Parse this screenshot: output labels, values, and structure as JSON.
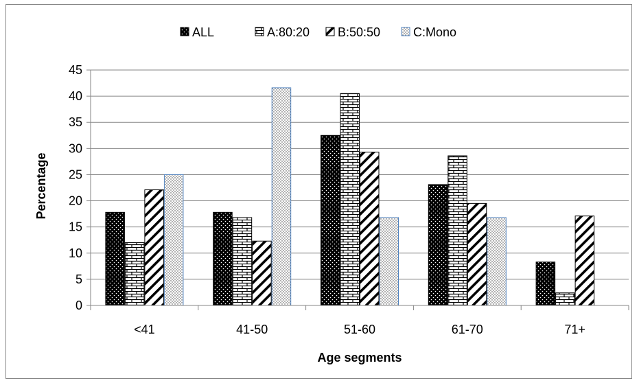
{
  "chart_data": {
    "type": "bar",
    "title": "",
    "xlabel": "Age segments",
    "ylabel": "Percentage",
    "categories": [
      "<41",
      "41-50",
      "51-60",
      "61-70",
      "71+"
    ],
    "ylim": [
      0,
      45
    ],
    "yticks": [
      0,
      5,
      10,
      15,
      20,
      25,
      30,
      35,
      40,
      45
    ],
    "grid": "horizontal",
    "legend_position": "top",
    "series": [
      {
        "name": "ALL",
        "pattern": "dots-on-black",
        "values": [
          17.8,
          17.8,
          32.5,
          23.1,
          8.3
        ]
      },
      {
        "name": "A:80:20",
        "pattern": "brick",
        "values": [
          12.0,
          16.8,
          40.5,
          28.6,
          2.4
        ]
      },
      {
        "name": "B:50:50",
        "pattern": "wide-diagonal",
        "values": [
          22.1,
          12.3,
          29.3,
          19.5,
          17.1
        ]
      },
      {
        "name": "C:Mono",
        "pattern": "dots-on-white",
        "values": [
          25.0,
          41.6,
          16.8,
          16.8,
          0
        ]
      }
    ],
    "colors": {
      "grid": "#868686",
      "axis": "#868686",
      "mono_border": "#4f81bd"
    }
  }
}
